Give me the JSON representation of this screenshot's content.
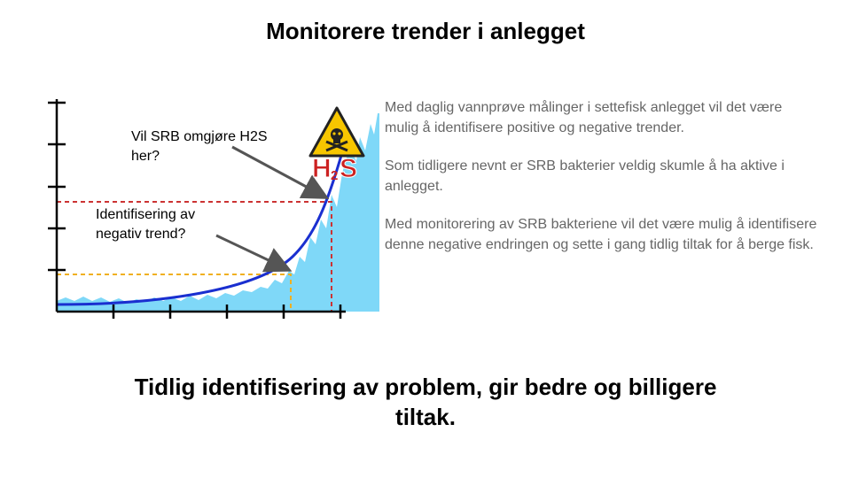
{
  "slide": {
    "title": "Monitorere trender i anlegget",
    "conclusion": "Tidlig identifisering av problem, gir bedre og billigere tiltak."
  },
  "diagram": {
    "callouts": [
      {
        "text": "Vil SRB omgjøre H2S her?"
      },
      {
        "text": "Identifisering av negativ trend?"
      }
    ],
    "hazard_sign": {
      "label": "H₂S",
      "icon": "skull-crossbones-warning-icon"
    },
    "colors": {
      "area_fill": "#7fd8f8",
      "trend_curve": "#1a2fd0",
      "threshold_high": "#cc3333",
      "threshold_low": "#f0b020",
      "arrow": "#555555",
      "sign_fill": "#f7c600",
      "h2s_text": "#cc2222"
    }
  },
  "text_panel": {
    "paragraphs": [
      "Med daglig vannprøve målinger i settefisk anlegget vil det være mulig å identifisere positive og negative trender.",
      "Som tidligere nevnt er SRB bakterier veldig skumle å ha aktive i anlegget.",
      "Med monitorering av SRB bakteriene vil det være mulig å identifisere denne negative endringen og sette i gang tidlig tiltak for å berge fisk."
    ]
  }
}
